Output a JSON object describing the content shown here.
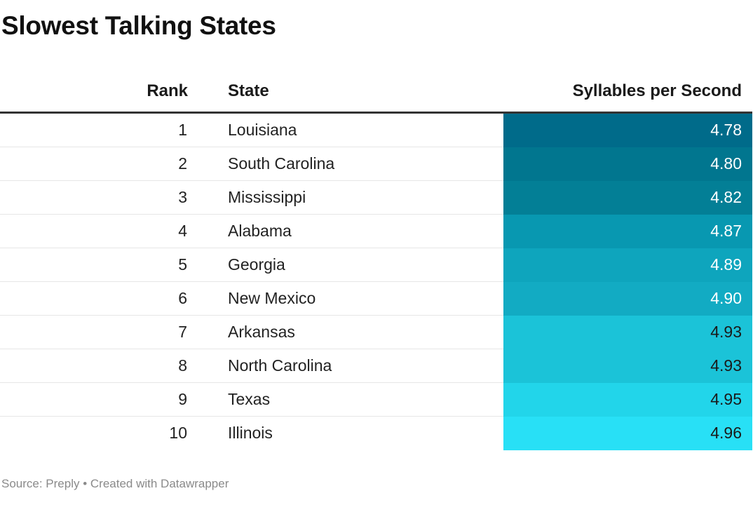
{
  "title": "Slowest Talking States",
  "footer": "Source: Preply • Created with Datawrapper",
  "colors": {
    "scale_low": "#006b8a",
    "scale_high": "#28e0f6"
  },
  "chart_data": {
    "type": "table",
    "title": "Slowest Talking States",
    "columns": [
      "Rank",
      "State",
      "Syllables per Second"
    ],
    "rows": [
      {
        "rank": "1",
        "state": "Louisiana",
        "value": "4.78",
        "color": "#006b8a",
        "text_color": "#ffffff"
      },
      {
        "rank": "2",
        "state": "South Carolina",
        "value": "4.80",
        "color": "#01768f",
        "text_color": "#ffffff"
      },
      {
        "rank": "3",
        "state": "Mississippi",
        "value": "4.82",
        "color": "#037f96",
        "text_color": "#ffffff"
      },
      {
        "rank": "4",
        "state": "Alabama",
        "value": "4.87",
        "color": "#0898b1",
        "text_color": "#ffffff"
      },
      {
        "rank": "5",
        "state": "Georgia",
        "value": "4.89",
        "color": "#0ea5bd",
        "text_color": "#ffffff"
      },
      {
        "rank": "6",
        "state": "New Mexico",
        "value": "4.90",
        "color": "#12abc3",
        "text_color": "#ffffff"
      },
      {
        "rank": "7",
        "state": "Arkansas",
        "value": "4.93",
        "color": "#1bc3d8",
        "text_color": "#1a1a1a"
      },
      {
        "rank": "8",
        "state": "North Carolina",
        "value": "4.93",
        "color": "#1bc3d8",
        "text_color": "#1a1a1a"
      },
      {
        "rank": "9",
        "state": "Texas",
        "value": "4.95",
        "color": "#22d5ea",
        "text_color": "#1a1a1a"
      },
      {
        "rank": "10",
        "state": "Illinois",
        "value": "4.96",
        "color": "#28e0f6",
        "text_color": "#1a1a1a"
      }
    ]
  }
}
